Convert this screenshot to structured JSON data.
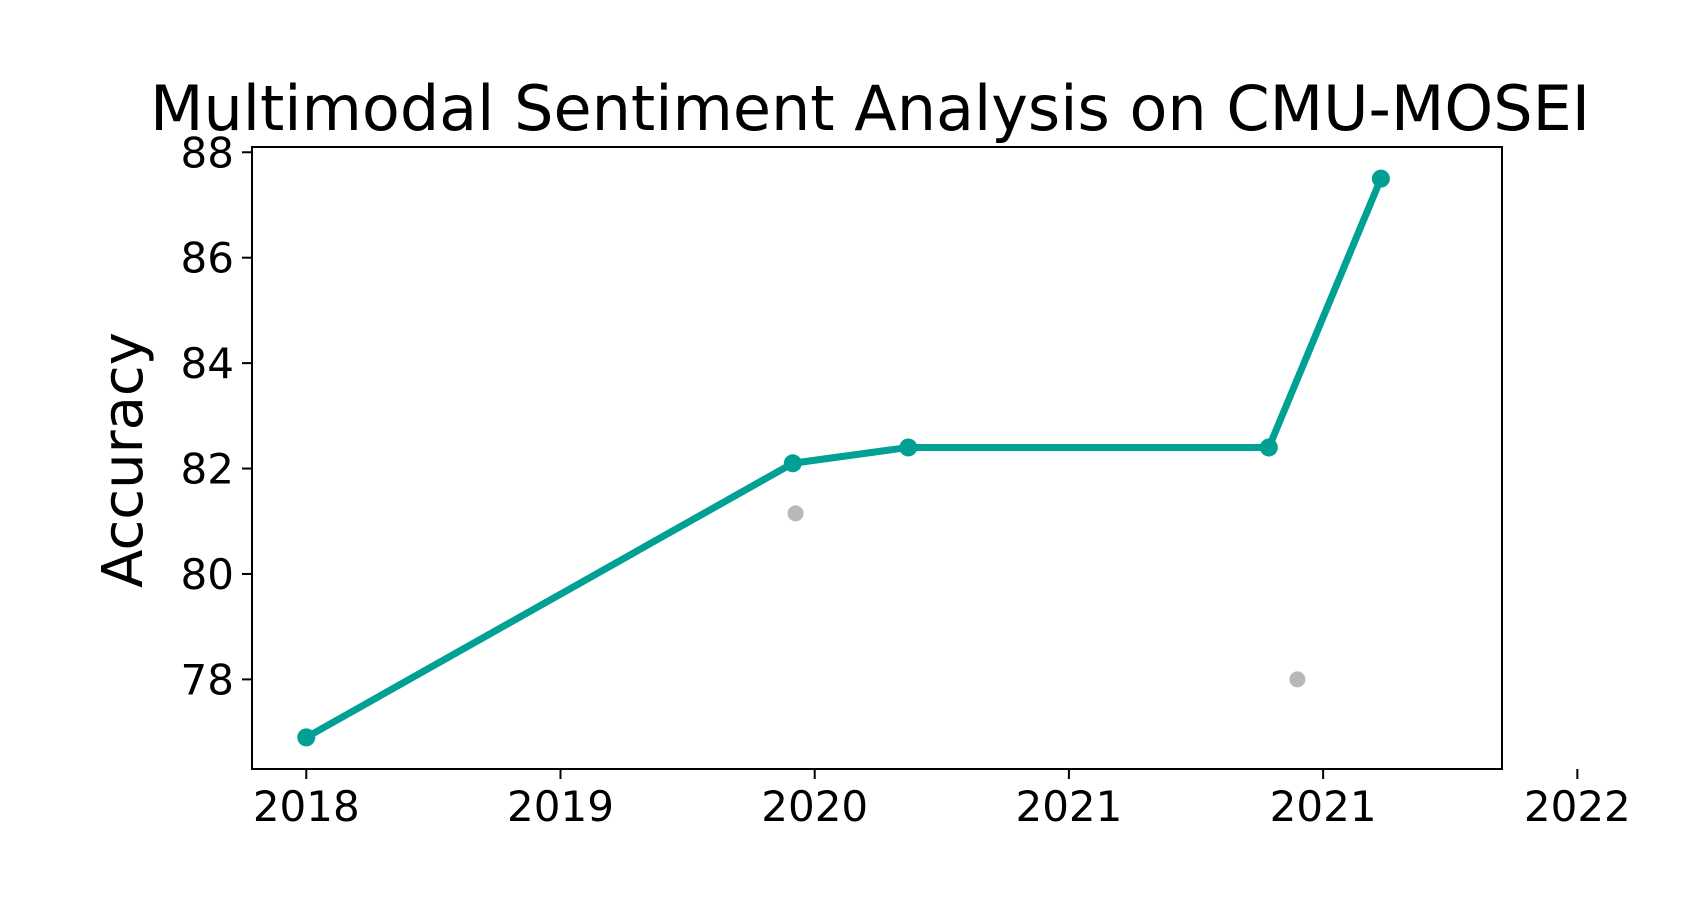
{
  "chart_data": {
    "type": "line",
    "title": "Multimodal Sentiment Analysis on CMU-MOSEI",
    "xlabel": "",
    "ylabel": "Accuracy",
    "x_tick_labels": [
      "2018",
      "2019",
      "2020",
      "2021",
      "2021",
      "2022"
    ],
    "y_ticks": [
      78,
      80,
      82,
      84,
      86,
      88
    ],
    "xlim": [
      "2017-10-15",
      "2022-09-15"
    ],
    "ylim": [
      76.3,
      88.1
    ],
    "grid": false,
    "series": [
      {
        "role": "state-of-the-art",
        "color": "#00a194",
        "points": [
          {
            "x": "2018-01-01",
            "y": 76.9
          },
          {
            "x": "2019-12-01",
            "y": 82.1
          },
          {
            "x": "2020-05-15",
            "y": 82.4
          },
          {
            "x": "2021-10-15",
            "y": 82.4
          },
          {
            "x": "2022-03-25",
            "y": 87.5
          }
        ]
      },
      {
        "role": "other-methods",
        "color": "#b8b8b8",
        "points": [
          {
            "x": "2019-12-05",
            "y": 81.15
          },
          {
            "x": "2021-11-25",
            "y": 78.0
          }
        ]
      }
    ]
  }
}
